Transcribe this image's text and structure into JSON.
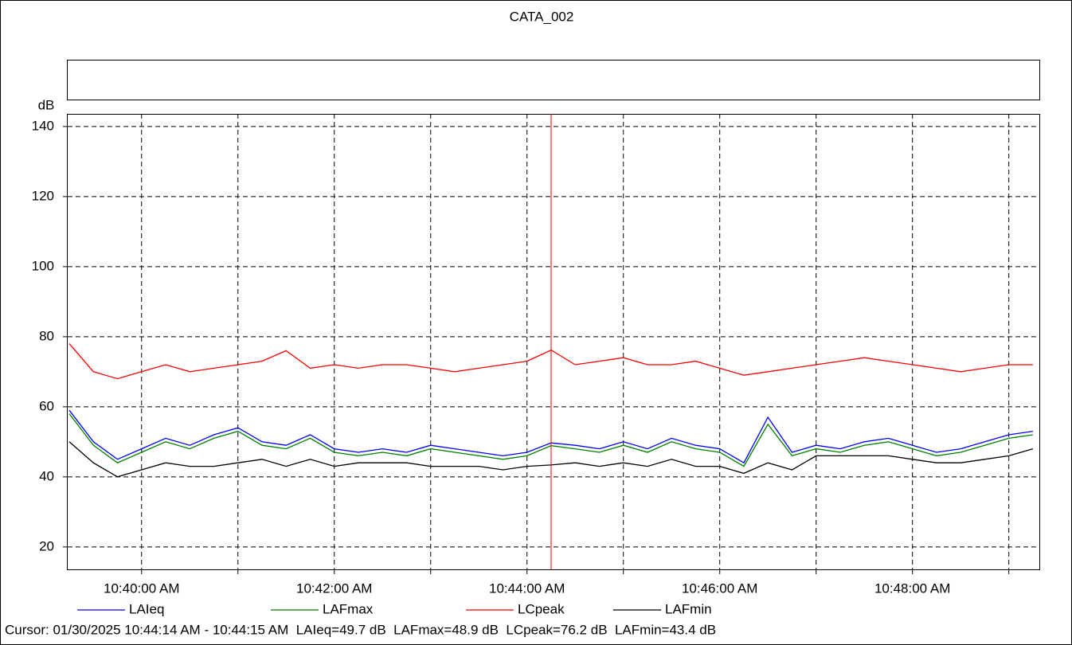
{
  "chart_data": {
    "type": "line",
    "title": "CATA_002",
    "y_label": "dB",
    "x": [
      "10:39:15 AM",
      "10:39:30 AM",
      "10:39:45 AM",
      "10:40:00 AM",
      "10:40:15 AM",
      "10:40:30 AM",
      "10:40:45 AM",
      "10:41:00 AM",
      "10:41:15 AM",
      "10:41:30 AM",
      "10:41:45 AM",
      "10:42:00 AM",
      "10:42:15 AM",
      "10:42:30 AM",
      "10:42:45 AM",
      "10:43:00 AM",
      "10:43:15 AM",
      "10:43:30 AM",
      "10:43:45 AM",
      "10:44:00 AM",
      "10:44:15 AM",
      "10:44:30 AM",
      "10:44:45 AM",
      "10:45:00 AM",
      "10:45:15 AM",
      "10:45:30 AM",
      "10:45:45 AM",
      "10:46:00 AM",
      "10:46:15 AM",
      "10:46:30 AM",
      "10:46:45 AM",
      "10:47:00 AM",
      "10:47:15 AM",
      "10:47:30 AM",
      "10:47:45 AM",
      "10:48:00 AM",
      "10:48:15 AM",
      "10:48:30 AM",
      "10:48:45 AM",
      "10:49:00 AM",
      "10:49:15 AM"
    ],
    "series": [
      {
        "name": "LAIeq",
        "color": "#0000ff",
        "values": [
          59,
          50,
          45,
          48,
          51,
          49,
          52,
          54,
          50,
          49,
          52,
          48,
          47,
          48,
          47,
          49,
          48,
          47,
          46,
          47,
          49.7,
          49,
          48,
          50,
          48,
          51,
          49,
          48,
          44,
          57,
          47,
          49,
          48,
          50,
          51,
          49,
          47,
          48,
          50,
          52,
          53
        ]
      },
      {
        "name": "LAFmax",
        "color": "#008000",
        "values": [
          58,
          49,
          44,
          47,
          50,
          48,
          51,
          53,
          49,
          48,
          51,
          47,
          46,
          47,
          46,
          48,
          47,
          46,
          45,
          46,
          48.9,
          48,
          47,
          49,
          47,
          50,
          48,
          47,
          43,
          55,
          46,
          48,
          47,
          49,
          50,
          48,
          46,
          47,
          49,
          51,
          52
        ]
      },
      {
        "name": "LCpeak",
        "color": "#ff0000",
        "values": [
          78,
          70,
          68,
          70,
          72,
          70,
          71,
          72,
          73,
          76,
          71,
          72,
          71,
          72,
          72,
          71,
          70,
          71,
          72,
          73,
          76.2,
          72,
          73,
          74,
          72,
          72,
          73,
          71,
          69,
          70,
          71,
          72,
          73,
          74,
          73,
          72,
          71,
          70,
          71,
          72,
          72
        ]
      },
      {
        "name": "LAFmin",
        "color": "#000000",
        "values": [
          50,
          44,
          40,
          42,
          44,
          43,
          43,
          44,
          45,
          43,
          45,
          43,
          44,
          44,
          44,
          43,
          43,
          43,
          42,
          43,
          43.4,
          44,
          43,
          44,
          43,
          45,
          43,
          43,
          41,
          44,
          42,
          46,
          46,
          46,
          46,
          45,
          44,
          44,
          45,
          46,
          48
        ]
      }
    ],
    "xlim": [
      "10:39:14 AM",
      "10:49:19 AM"
    ],
    "xticks": [
      "10:40:00 AM",
      "10:42:00 AM",
      "10:44:00 AM",
      "10:46:00 AM",
      "10:48:00 AM"
    ],
    "xminor_ticks": [
      "10:41:00 AM",
      "10:43:00 AM",
      "10:45:00 AM",
      "10:47:00 AM",
      "10:49:00 AM"
    ],
    "ylim": [
      13.6,
      143.6
    ],
    "yticks": [
      20,
      40,
      60,
      80,
      100,
      120,
      140
    ],
    "grid": true,
    "cursor": {
      "x": "10:44:15 AM",
      "color": "#ff0000",
      "readout": "Cursor: 01/30/2025 10:44:14 AM - 10:44:15 AM  LAIeq=49.7 dB  LAFmax=48.9 dB  LCpeak=76.2 dB  LAFmin=43.4 dB"
    }
  }
}
